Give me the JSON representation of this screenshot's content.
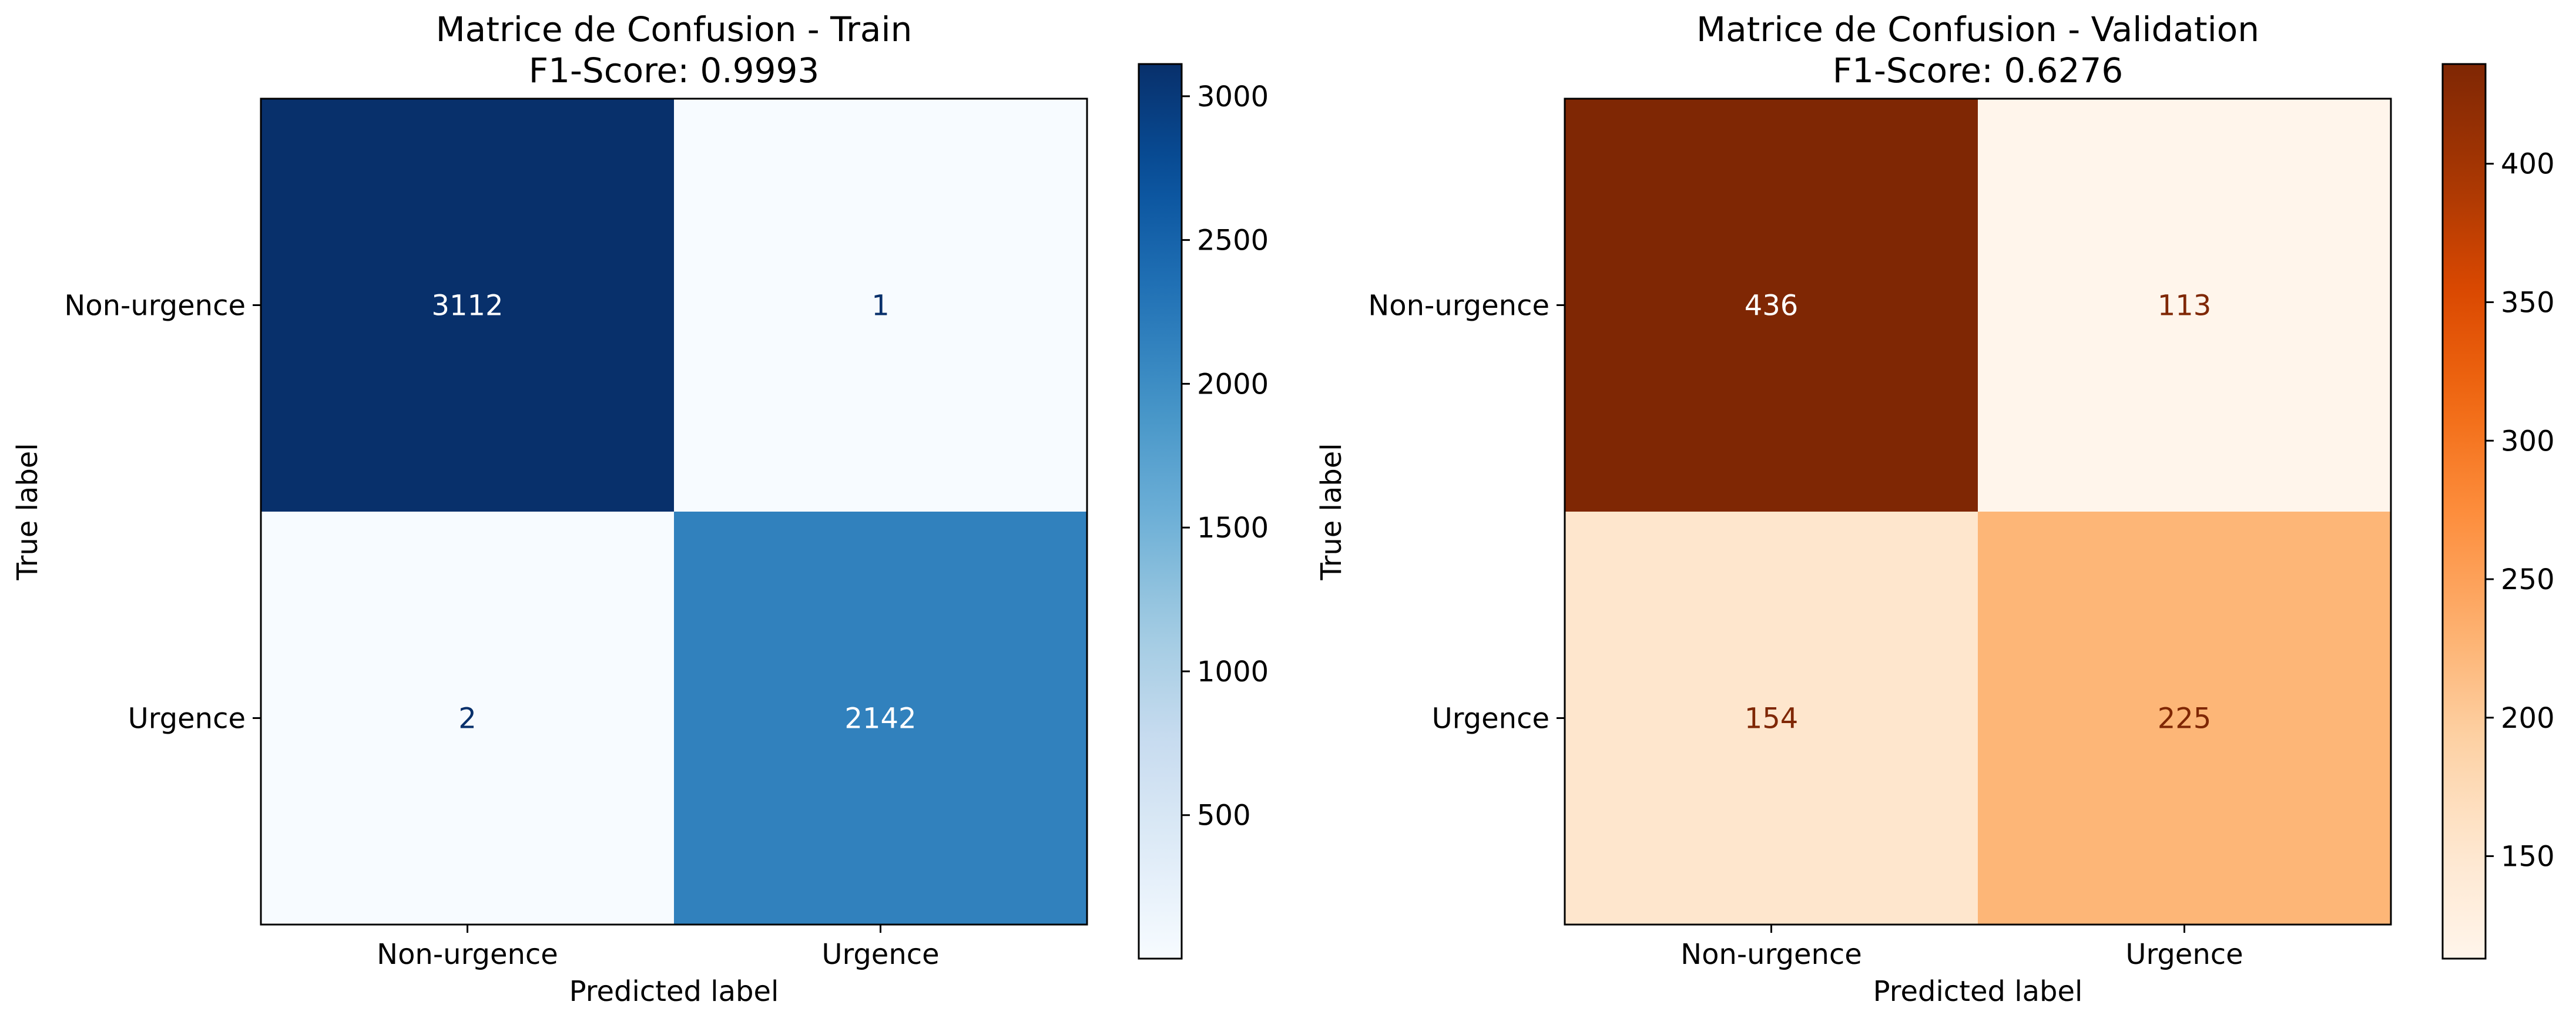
{
  "chart_data": [
    {
      "type": "heatmap",
      "title": "Matrice de Confusion - Train\nF1-Score: 0.9993",
      "xlabel": "Predicted label",
      "ylabel": "True label",
      "x_categories": [
        "Non-urgence",
        "Urgence"
      ],
      "y_categories": [
        "Non-urgence",
        "Urgence"
      ],
      "values": [
        [
          3112,
          1
        ],
        [
          2,
          2142
        ]
      ],
      "colormap": "Blues",
      "colorbar": {
        "range": [
          1,
          3112
        ],
        "ticks": [
          500,
          1000,
          1500,
          2000,
          2500,
          3000
        ]
      }
    },
    {
      "type": "heatmap",
      "title": "Matrice de Confusion - Validation\nF1-Score: 0.6276",
      "xlabel": "Predicted label",
      "ylabel": "True label",
      "x_categories": [
        "Non-urgence",
        "Urgence"
      ],
      "y_categories": [
        "Non-urgence",
        "Urgence"
      ],
      "values": [
        [
          436,
          113
        ],
        [
          154,
          225
        ]
      ],
      "colormap": "Oranges",
      "colorbar": {
        "range": [
          113,
          436
        ],
        "ticks": [
          150,
          200,
          250,
          300,
          350,
          400
        ]
      }
    }
  ]
}
